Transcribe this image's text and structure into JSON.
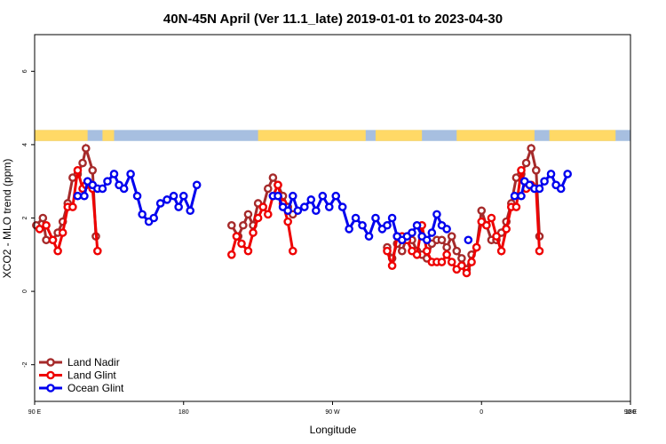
{
  "chart_data": {
    "type": "line",
    "title": "40N-45N April (Ver 11.1_late)   2019-01-01 to 2023-04-30",
    "xlabel": "Longitude",
    "ylabel": "XCO2 - MLO trend (ppm)",
    "x_tick_labels": [
      "90 E",
      "180",
      "90 W",
      "0",
      "90 E",
      "180"
    ],
    "y_tick_labels": [
      "6",
      "4",
      "2",
      "0",
      "-2"
    ],
    "xlim": [
      90,
      450
    ],
    "ylim": [
      -3,
      7
    ],
    "legend_position": "bottom-left",
    "land_mask": {
      "land_color": "#FFD966",
      "ocean_color": "#A7BFE0",
      "land_segments": [
        [
          90,
          122
        ],
        [
          131,
          138
        ],
        [
          225,
          290
        ],
        [
          296,
          324
        ],
        [
          345,
          392
        ],
        [
          401,
          441
        ]
      ]
    },
    "series": [
      {
        "name": "Land Nadir",
        "color": "#A52A2A",
        "segments": [
          [
            [
              91,
              1.8
            ],
            [
              95,
              2.0
            ],
            [
              97,
              1.4
            ],
            [
              101,
              1.4
            ],
            [
              104,
              1.6
            ],
            [
              107,
              1.9
            ],
            [
              110,
              2.4
            ],
            [
              113,
              3.1
            ],
            [
              116,
              3.2
            ],
            [
              119,
              3.5
            ],
            [
              121,
              3.9
            ],
            [
              125,
              3.3
            ],
            [
              127,
              1.5
            ]
          ],
          [
            [
              209,
              1.8
            ],
            [
              213,
              1.5
            ],
            [
              216,
              1.8
            ],
            [
              219,
              2.1
            ],
            [
              222,
              1.8
            ],
            [
              225,
              2.4
            ],
            [
              228,
              2.3
            ],
            [
              231,
              2.8
            ],
            [
              234,
              3.1
            ],
            [
              237,
              2.9
            ],
            [
              240,
              2.6
            ],
            [
              243,
              2.3
            ],
            [
              246,
              2.1
            ]
          ],
          [
            [
              303,
              1.2
            ],
            [
              306,
              0.9
            ],
            [
              309,
              1.3
            ],
            [
              312,
              1.1
            ],
            [
              315,
              1.5
            ],
            [
              318,
              1.4
            ],
            [
              321,
              1.1
            ],
            [
              324,
              1.0
            ],
            [
              327,
              0.9
            ],
            [
              330,
              1.3
            ],
            [
              333,
              1.4
            ],
            [
              336,
              1.4
            ],
            [
              339,
              1.2
            ],
            [
              342,
              1.5
            ],
            [
              345,
              1.1
            ],
            [
              348,
              0.9
            ],
            [
              351,
              0.6
            ],
            [
              354,
              1.0
            ],
            [
              357,
              1.2
            ],
            [
              360,
              2.2
            ],
            [
              363,
              1.8
            ],
            [
              366,
              1.4
            ],
            [
              369,
              1.4
            ],
            [
              372,
              1.6
            ],
            [
              375,
              1.9
            ],
            [
              378,
              2.4
            ],
            [
              381,
              3.1
            ],
            [
              384,
              3.2
            ],
            [
              387,
              3.5
            ],
            [
              390,
              3.9
            ],
            [
              393,
              3.3
            ],
            [
              395,
              1.5
            ]
          ]
        ]
      },
      {
        "name": "Land Glint",
        "color": "#EE0000",
        "segments": [
          [
            [
              93,
              1.7
            ],
            [
              97,
              1.8
            ],
            [
              101,
              1.4
            ],
            [
              104,
              1.1
            ],
            [
              107,
              1.6
            ],
            [
              110,
              2.3
            ],
            [
              113,
              2.3
            ],
            [
              116,
              3.3
            ],
            [
              119,
              2.8
            ],
            [
              121,
              2.9
            ],
            [
              125,
              2.8
            ],
            [
              128,
              1.1
            ]
          ],
          [
            [
              209,
              1.0
            ],
            [
              212,
              1.5
            ],
            [
              215,
              1.3
            ],
            [
              219,
              1.1
            ],
            [
              222,
              1.6
            ],
            [
              225,
              2.0
            ],
            [
              228,
              2.3
            ],
            [
              231,
              2.1
            ],
            [
              234,
              2.6
            ],
            [
              237,
              2.9
            ],
            [
              240,
              2.4
            ],
            [
              243,
              1.9
            ],
            [
              246,
              1.1
            ]
          ],
          [
            [
              303,
              1.1
            ],
            [
              306,
              0.7
            ],
            [
              309,
              1.5
            ],
            [
              312,
              1.5
            ],
            [
              315,
              1.4
            ],
            [
              318,
              1.1
            ],
            [
              321,
              1.0
            ],
            [
              324,
              1.8
            ],
            [
              327,
              1.1
            ],
            [
              330,
              0.8
            ],
            [
              333,
              0.8
            ],
            [
              336,
              0.8
            ],
            [
              339,
              1.0
            ],
            [
              342,
              0.8
            ],
            [
              345,
              0.6
            ],
            [
              348,
              0.7
            ],
            [
              351,
              0.5
            ],
            [
              354,
              0.8
            ],
            [
              357,
              1.2
            ],
            [
              360,
              1.9
            ],
            [
              363,
              1.8
            ],
            [
              366,
              2.0
            ],
            [
              369,
              1.5
            ],
            [
              372,
              1.1
            ],
            [
              375,
              1.7
            ],
            [
              378,
              2.3
            ],
            [
              381,
              2.3
            ],
            [
              384,
              3.3
            ],
            [
              387,
              2.8
            ],
            [
              390,
              2.9
            ],
            [
              393,
              2.8
            ],
            [
              395,
              1.1
            ]
          ]
        ]
      },
      {
        "name": "Ocean Glint",
        "color": "#0000EE",
        "segments": [
          [
            [
              116,
              2.6
            ],
            [
              120,
              2.6
            ],
            [
              122,
              3.0
            ],
            [
              125,
              2.9
            ],
            [
              128,
              2.8
            ],
            [
              131,
              2.8
            ],
            [
              134,
              3.0
            ],
            [
              138,
              3.2
            ],
            [
              141,
              2.9
            ],
            [
              144,
              2.8
            ],
            [
              148,
              3.2
            ],
            [
              152,
              2.6
            ],
            [
              155,
              2.1
            ],
            [
              159,
              1.9
            ],
            [
              162,
              2.0
            ],
            [
              166,
              2.4
            ],
            [
              170,
              2.5
            ],
            [
              174,
              2.6
            ],
            [
              177,
              2.3
            ],
            [
              180,
              2.6
            ],
            [
              184,
              2.2
            ],
            [
              188,
              2.9
            ]
          ],
          [
            [
              234,
              2.6
            ],
            [
              237,
              2.6
            ],
            [
              240,
              2.3
            ],
            [
              243,
              2.2
            ],
            [
              246,
              2.6
            ],
            [
              249,
              2.2
            ],
            [
              253,
              2.3
            ],
            [
              257,
              2.5
            ],
            [
              260,
              2.2
            ],
            [
              264,
              2.6
            ],
            [
              268,
              2.3
            ],
            [
              272,
              2.6
            ],
            [
              276,
              2.3
            ],
            [
              280,
              1.7
            ],
            [
              284,
              2.0
            ],
            [
              288,
              1.8
            ],
            [
              292,
              1.5
            ],
            [
              296,
              2.0
            ],
            [
              300,
              1.7
            ],
            [
              303,
              1.8
            ],
            [
              306,
              2.0
            ],
            [
              309,
              1.5
            ],
            [
              312,
              1.4
            ],
            [
              315,
              1.5
            ],
            [
              318,
              1.6
            ],
            [
              321,
              1.8
            ],
            [
              324,
              1.5
            ],
            [
              327,
              1.4
            ],
            [
              330,
              1.6
            ],
            [
              333,
              2.1
            ],
            [
              336,
              1.8
            ],
            [
              339,
              1.7
            ]
          ],
          [
            [
              352,
              1.4
            ]
          ],
          [
            [
              380,
              2.6
            ],
            [
              384,
              2.6
            ],
            [
              386,
              3.0
            ],
            [
              389,
              2.9
            ],
            [
              392,
              2.8
            ],
            [
              395,
              2.8
            ],
            [
              398,
              3.0
            ],
            [
              402,
              3.2
            ],
            [
              405,
              2.9
            ],
            [
              408,
              2.8
            ],
            [
              412,
              3.2
            ]
          ]
        ]
      }
    ]
  }
}
